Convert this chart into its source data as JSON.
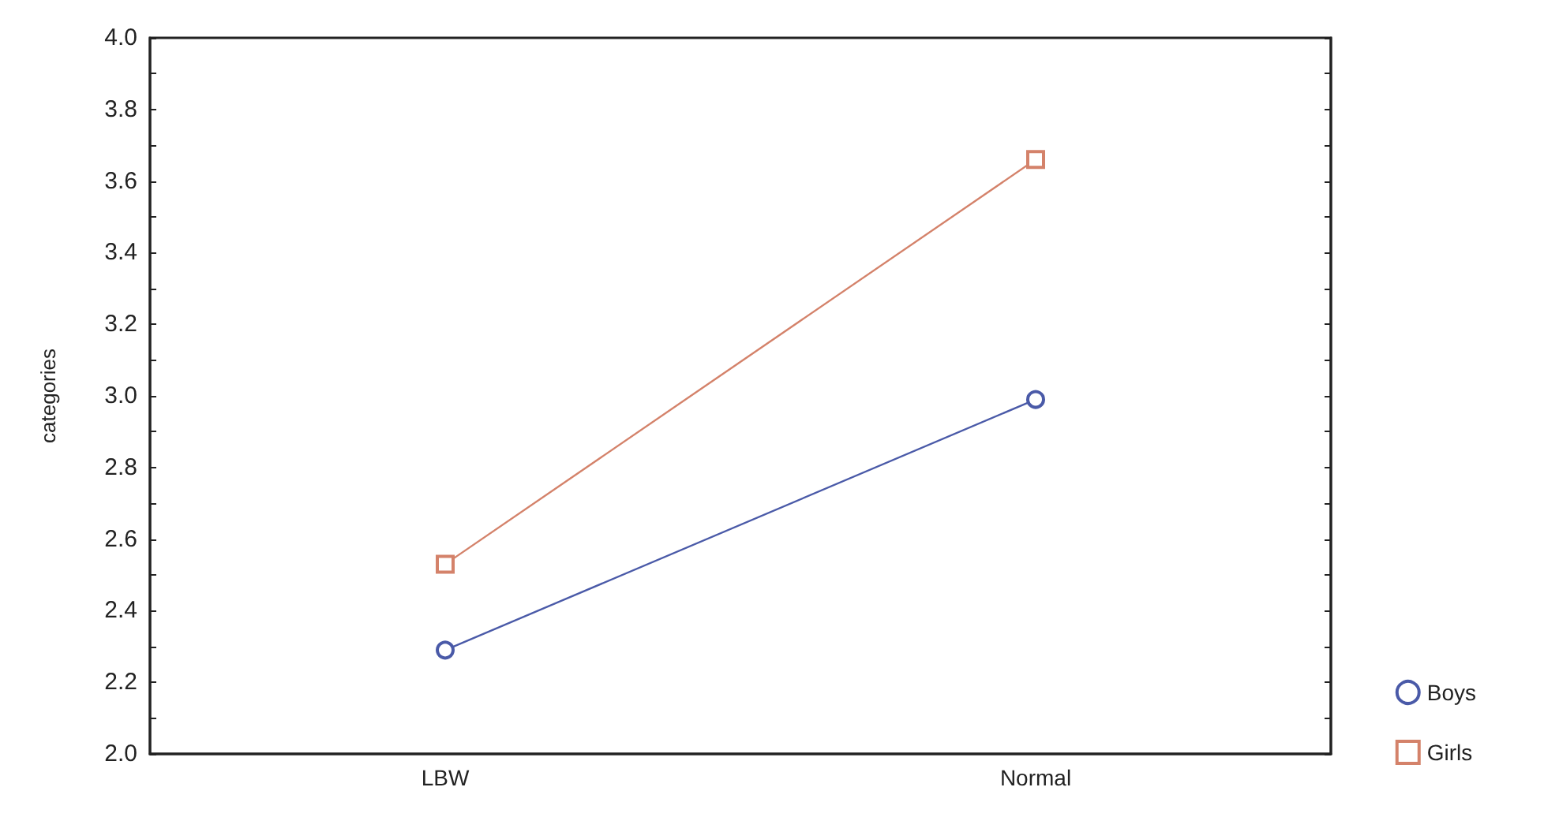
{
  "chart_data": {
    "type": "line",
    "ylabel": "categories",
    "categories": [
      "LBW",
      "Normal"
    ],
    "series": [
      {
        "name": "Boys",
        "color": "#4a5aa8",
        "marker": "circle",
        "values": [
          2.29,
          2.99
        ]
      },
      {
        "name": "Girls",
        "color": "#d4826a",
        "marker": "square",
        "values": [
          2.53,
          3.66
        ]
      }
    ],
    "ylim": [
      2.0,
      4.0
    ],
    "yticks": [
      {
        "value": 2,
        "label": "2.0"
      },
      2.2,
      2.4,
      2.6,
      2.8,
      {
        "value": 3,
        "label": "3.0"
      },
      3.2,
      3.4,
      3.6,
      3.8,
      {
        "value": 4,
        "label": "4.0"
      }
    ],
    "grid": false,
    "legend": "bottom right"
  }
}
